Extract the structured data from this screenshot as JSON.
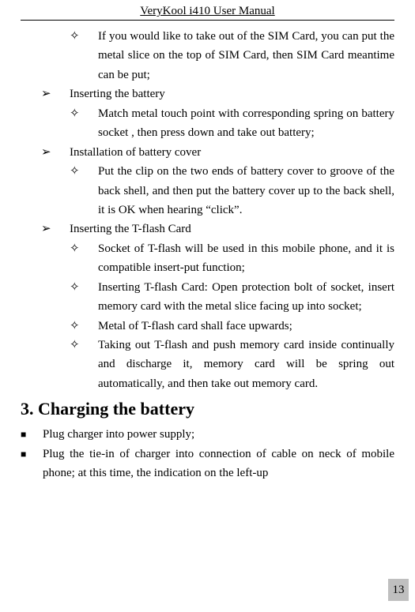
{
  "header": "VeryKool i410 User Manual",
  "bullets": {
    "arrow": "➢",
    "diamond": "✧",
    "square": "■"
  },
  "items": [
    {
      "level": 2,
      "text": "If you would like to take out of the SIM Card, you can put the metal slice on the top of SIM Card, then SIM Card meantime can be put;"
    },
    {
      "level": 1,
      "text": "Inserting the battery"
    },
    {
      "level": 2,
      "text": "Match metal touch point with corresponding spring on battery socket , then press down and take out battery;"
    },
    {
      "level": 1,
      "text": "Installation of battery cover"
    },
    {
      "level": 2,
      "text": "Put the clip on the two ends of battery cover to groove of the back shell, and then put the battery cover up to the back shell, it is OK when hearing “click”."
    },
    {
      "level": 1,
      "text": "Inserting the T-flash Card"
    },
    {
      "level": 2,
      "text": "Socket of T-flash will be used in this mobile phone, and it is compatible insert-put function;"
    },
    {
      "level": 2,
      "text": "Inserting T-flash Card: Open protection bolt of socket, insert memory card with the metal slice facing up into socket;"
    },
    {
      "level": 2,
      "text": "Metal of T-flash card shall face upwards;"
    },
    {
      "level": 2,
      "text": "Taking out T-flash and push memory card inside continually and discharge it, memory card will be spring out automatically, and then take out memory card."
    }
  ],
  "sectionHeading": "3. Charging the battery",
  "squareItems": [
    {
      "text": "Plug charger into power supply;"
    },
    {
      "text": "Plug the tie-in of charger into connection of cable on neck of mobile phone; at this time, the indication on the left-up"
    }
  ],
  "pageNumber": "13"
}
